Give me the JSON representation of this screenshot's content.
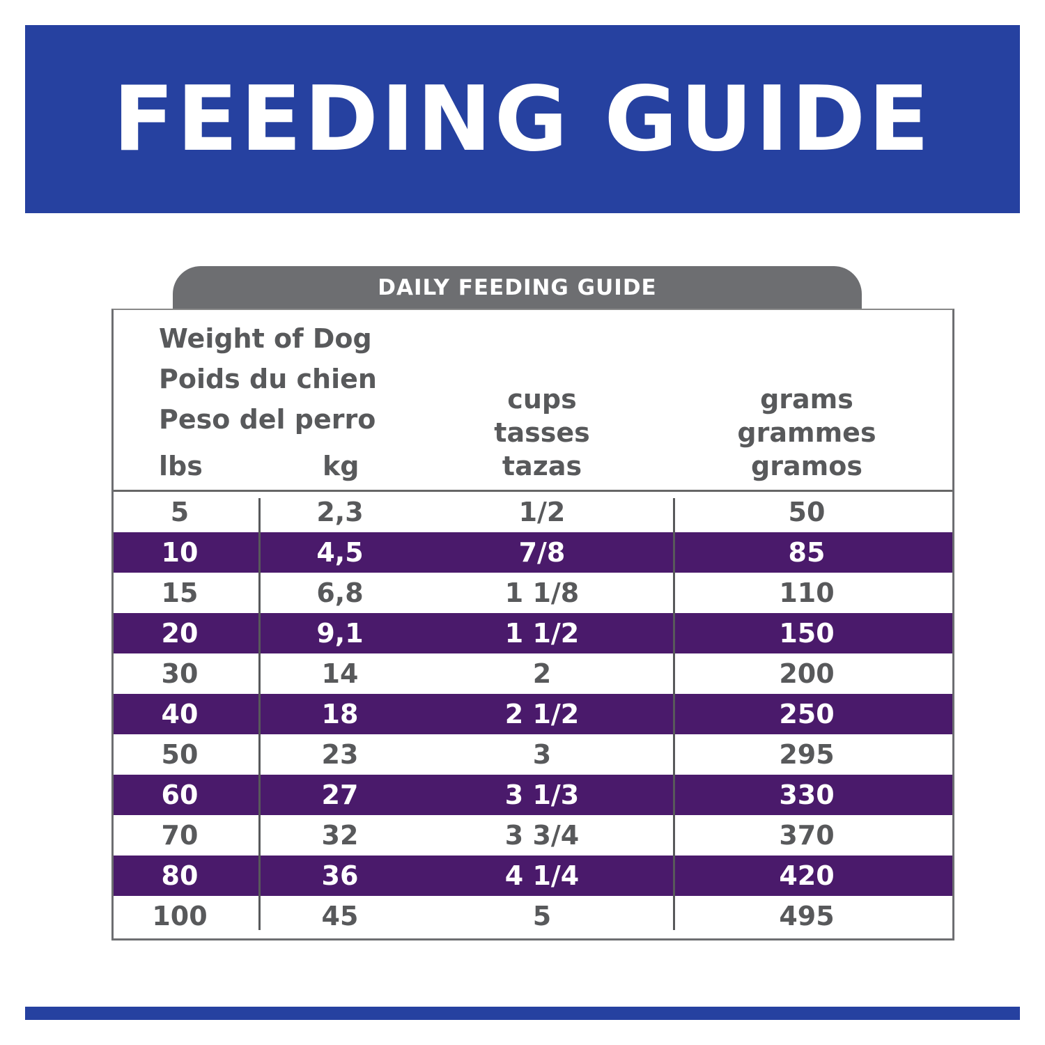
{
  "banner": {
    "title": "FEEDING GUIDE"
  },
  "tab": {
    "label": "DAILY FEEDING GUIDE"
  },
  "header": {
    "weight": [
      "Weight of Dog",
      "Poids du chien",
      "Peso del perro"
    ],
    "lbs": "lbs",
    "kg": "kg",
    "cups": [
      "cups",
      "tasses",
      "tazas"
    ],
    "grams": [
      "grams",
      "grammes",
      "gramos"
    ]
  },
  "rows": [
    {
      "lbs": "5",
      "kg": "2,3",
      "cups": "1/2",
      "grams": "50"
    },
    {
      "lbs": "10",
      "kg": "4,5",
      "cups": "7/8",
      "grams": "85"
    },
    {
      "lbs": "15",
      "kg": "6,8",
      "cups": "1 1/8",
      "grams": "110"
    },
    {
      "lbs": "20",
      "kg": "9,1",
      "cups": "1 1/2",
      "grams": "150"
    },
    {
      "lbs": "30",
      "kg": "14",
      "cups": "2",
      "grams": "200"
    },
    {
      "lbs": "40",
      "kg": "18",
      "cups": "2 1/2",
      "grams": "250"
    },
    {
      "lbs": "50",
      "kg": "23",
      "cups": "3",
      "grams": "295"
    },
    {
      "lbs": "60",
      "kg": "27",
      "cups": "3 1/3",
      "grams": "330"
    },
    {
      "lbs": "70",
      "kg": "32",
      "cups": "3 3/4",
      "grams": "370"
    },
    {
      "lbs": "80",
      "kg": "36",
      "cups": "4 1/4",
      "grams": "420"
    },
    {
      "lbs": "100",
      "kg": "45",
      "cups": "5",
      "grams": "495"
    }
  ],
  "colors": {
    "brand_blue": "#2641a0",
    "row_purple": "#4a1a6b",
    "tab_gray": "#6d6e71",
    "text_gray": "#58595b"
  }
}
